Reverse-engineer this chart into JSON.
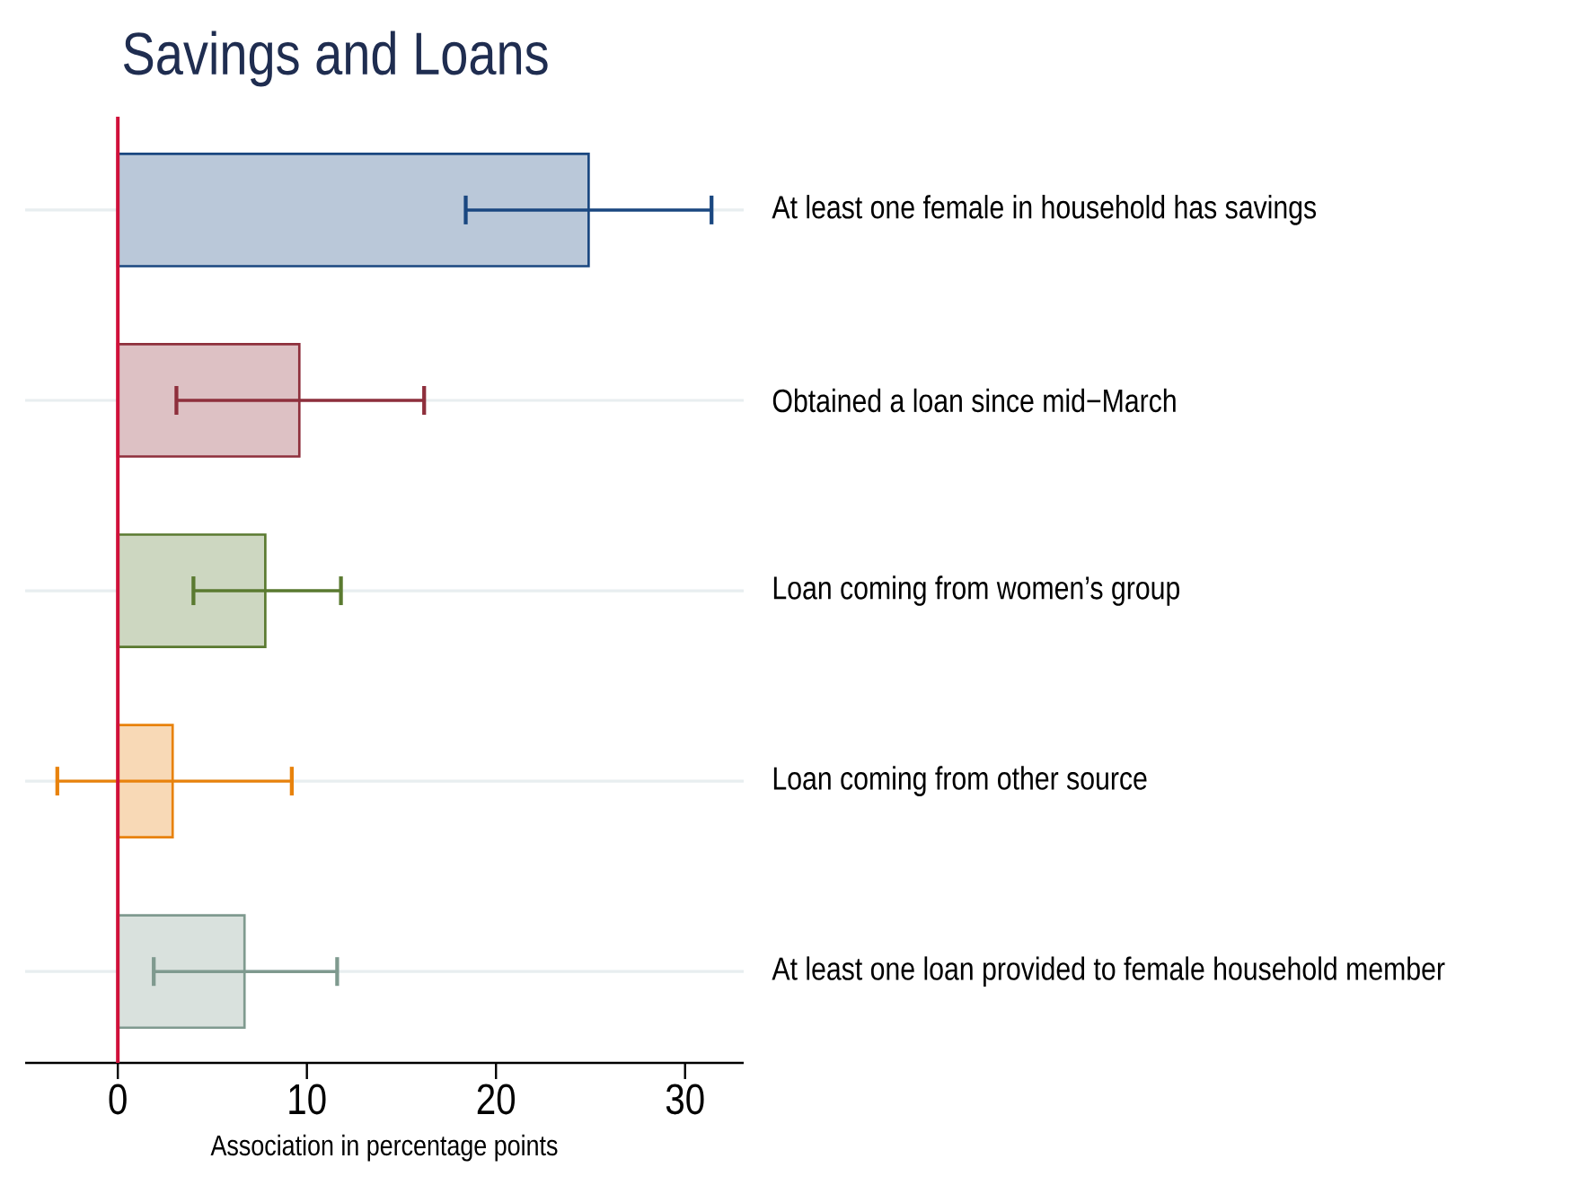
{
  "chart_data": {
    "type": "bar",
    "orientation": "horizontal",
    "title": "Savings and Loans",
    "xlabel": "Association in percentage points",
    "categories": [
      "At least one female in household has savings",
      "Obtained a loan since mid−March",
      "Loan coming from women’s group",
      "Loan coming from other source",
      "At least one loan provided to female household member"
    ],
    "values": [
      24.9,
      9.6,
      7.8,
      2.9,
      6.7
    ],
    "colors": [
      "#1a4780",
      "#8e2f3c",
      "#5a7a30",
      "#e8820c",
      "#7f9a8f"
    ],
    "errors": [
      [
        18.4,
        31.4
      ],
      [
        3.1,
        16.2
      ],
      [
        4.0,
        11.8
      ],
      [
        -3.2,
        9.2
      ],
      [
        1.9,
        11.6
      ]
    ],
    "xlim": [
      -4.9,
      33.1
    ],
    "xticks": [
      0,
      10,
      20,
      30
    ],
    "ref_lines": [
      {
        "axis": "x",
        "value": 0,
        "color": "#d0103a"
      }
    ],
    "grid": "y"
  }
}
